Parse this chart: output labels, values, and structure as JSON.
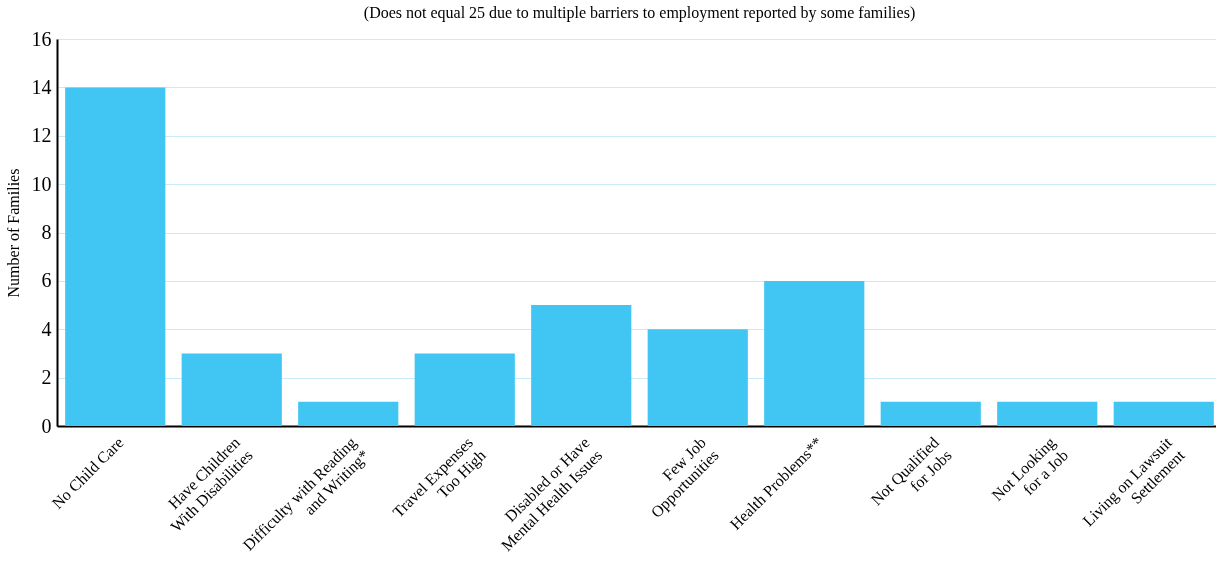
{
  "chart_data": {
    "type": "bar",
    "title": "(Does not equal 25 due to multiple barriers to employment reported by some families)",
    "ylabel": "Number of Families",
    "categories": [
      "No Child Care",
      "Have Children\nWith Disabilities",
      "Difficulty with Reading\nand Writing*",
      "Travel Expenses\nToo High",
      "Disabled or Have\nMental Health Issues",
      "Few Job\nOpportunities",
      "Health Problems**",
      "Not Qualified\nfor Jobs",
      "Not Looking\nfor a Job",
      "Living on Lawsuit\nSettlement"
    ],
    "values": [
      14,
      3,
      1,
      3,
      5,
      4,
      6,
      1,
      1,
      1
    ],
    "color": "#41c6f3",
    "ylim": [
      0,
      16
    ],
    "yticks": [
      0,
      2,
      4,
      6,
      8,
      10,
      12,
      14,
      16
    ],
    "grid": "y"
  }
}
